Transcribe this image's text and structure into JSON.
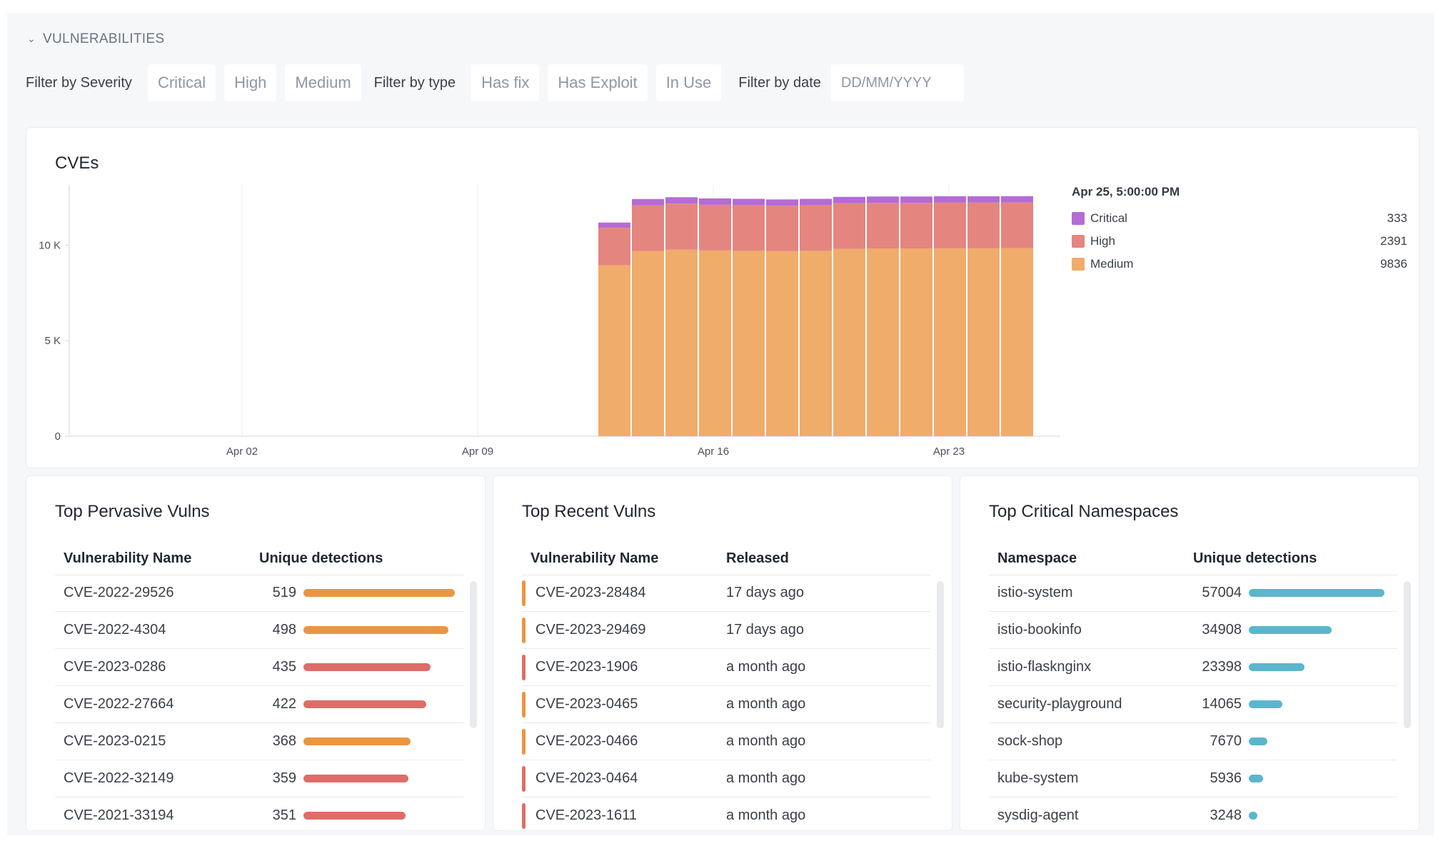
{
  "section": {
    "title": "VULNERABILITIES"
  },
  "filters": {
    "severity_label": "Filter by Severity",
    "severity": [
      "Critical",
      "High",
      "Medium"
    ],
    "type_label": "Filter by type",
    "type": [
      "Has fix",
      "Has Exploit",
      "In Use"
    ],
    "date_label": "Filter by date",
    "date_placeholder": "DD/MM/YYYY"
  },
  "cves": {
    "title": "CVEs",
    "legend": {
      "title": "Apr 25, 5:00:00 PM",
      "items": [
        {
          "name": "Critical",
          "value": "333",
          "color": "#b56bd6"
        },
        {
          "name": "High",
          "value": "2391",
          "color": "#e5857f"
        },
        {
          "name": "Medium",
          "value": "9836",
          "color": "#f0ac6b"
        }
      ]
    }
  },
  "chart_data": {
    "type": "bar",
    "stacked": true,
    "x_tick_labels": [
      "Apr 02",
      "Apr 09",
      "Apr 16",
      "Apr 23"
    ],
    "y_tick_labels": [
      "0",
      "5 K",
      "10 K"
    ],
    "ylim": [
      0,
      13000
    ],
    "x_dates": [
      "Apr 13",
      "Apr 14",
      "Apr 15",
      "Apr 16",
      "Apr 17",
      "Apr 18",
      "Apr 19",
      "Apr 20",
      "Apr 21",
      "Apr 22",
      "Apr 23",
      "Apr 24",
      "Apr 25"
    ],
    "series": [
      {
        "name": "Medium",
        "color": "#f0ac6b",
        "values": [
          8950,
          9680,
          9760,
          9720,
          9700,
          9680,
          9700,
          9800,
          9820,
          9820,
          9830,
          9830,
          9836
        ]
      },
      {
        "name": "High",
        "color": "#e5857f",
        "values": [
          1950,
          2400,
          2410,
          2390,
          2390,
          2380,
          2390,
          2390,
          2390,
          2391,
          2391,
          2391,
          2391
        ]
      },
      {
        "name": "Critical",
        "color": "#b56bd6",
        "values": [
          280,
          330,
          335,
          330,
          330,
          330,
          330,
          333,
          333,
          333,
          333,
          333,
          333
        ]
      }
    ],
    "grid": true,
    "legend_position": "right"
  },
  "pervasive": {
    "title": "Top Pervasive Vulns",
    "col1": "Vulnerability Name",
    "col2": "Unique detections",
    "rows": [
      {
        "name": "CVE-2022-29526",
        "count": "519",
        "value": 519,
        "color": "#ec9540"
      },
      {
        "name": "CVE-2022-4304",
        "count": "498",
        "value": 498,
        "color": "#ec9540"
      },
      {
        "name": "CVE-2023-0286",
        "count": "435",
        "value": 435,
        "color": "#e06c68"
      },
      {
        "name": "CVE-2022-27664",
        "count": "422",
        "value": 422,
        "color": "#e06c68"
      },
      {
        "name": "CVE-2023-0215",
        "count": "368",
        "value": 368,
        "color": "#ec9540"
      },
      {
        "name": "CVE-2022-32149",
        "count": "359",
        "value": 359,
        "color": "#e06c68"
      },
      {
        "name": "CVE-2021-33194",
        "count": "351",
        "value": 351,
        "color": "#e06c68"
      }
    ]
  },
  "recent": {
    "title": "Top Recent Vulns",
    "col1": "Vulnerability Name",
    "col2": "Released",
    "rows": [
      {
        "name": "CVE-2023-28484",
        "released": "17 days ago",
        "color": "#ec9540"
      },
      {
        "name": "CVE-2023-29469",
        "released": "17 days ago",
        "color": "#ec9540"
      },
      {
        "name": "CVE-2023-1906",
        "released": "a month ago",
        "color": "#e06c68"
      },
      {
        "name": "CVE-2023-0465",
        "released": "a month ago",
        "color": "#ec9540"
      },
      {
        "name": "CVE-2023-0466",
        "released": "a month ago",
        "color": "#ec9540"
      },
      {
        "name": "CVE-2023-0464",
        "released": "a month ago",
        "color": "#e06c68"
      },
      {
        "name": "CVE-2023-1611",
        "released": "a month ago",
        "color": "#e06c68"
      }
    ]
  },
  "namespaces": {
    "title": "Top Critical Namespaces",
    "col1": "Namespace",
    "col2": "Unique detections",
    "rows": [
      {
        "name": "istio-system",
        "count": "57004",
        "value": 57004
      },
      {
        "name": "istio-bookinfo",
        "count": "34908",
        "value": 34908
      },
      {
        "name": "istio-flasknginx",
        "count": "23398",
        "value": 23398
      },
      {
        "name": "security-playground",
        "count": "14065",
        "value": 14065
      },
      {
        "name": "sock-shop",
        "count": "7670",
        "value": 7670
      },
      {
        "name": "kube-system",
        "count": "5936",
        "value": 5936
      },
      {
        "name": "sysdig-agent",
        "count": "3248",
        "value": 3248
      }
    ],
    "bar_color": "#5bb6cd"
  }
}
